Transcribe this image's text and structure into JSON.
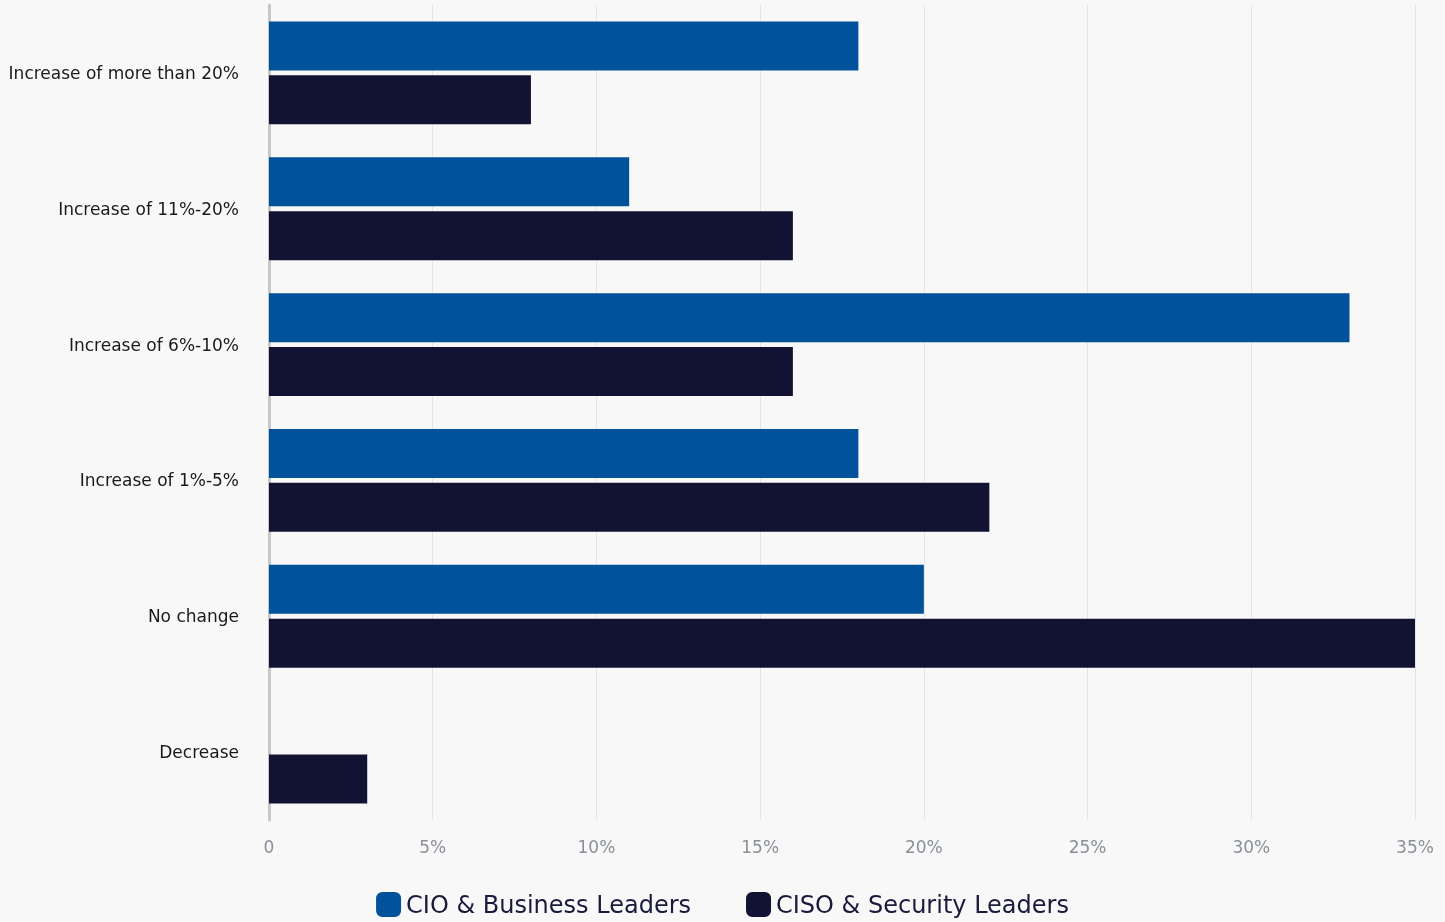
{
  "chart_data": {
    "type": "bar",
    "orientation": "horizontal",
    "categories": [
      "Increase of more than 20%",
      "Increase of 11%-20%",
      "Increase of 6%-10%",
      "Increase of 1%-5%",
      "No change",
      "Decrease"
    ],
    "series": [
      {
        "name": "CIO & Business Leaders",
        "color": "#00539b",
        "values": [
          18,
          11,
          33,
          18,
          20,
          0
        ]
      },
      {
        "name": "CISO & Security Leaders",
        "color": "#121232",
        "values": [
          8,
          16,
          16,
          22,
          35,
          3
        ]
      }
    ],
    "xlim": [
      0,
      35
    ],
    "xticks": [
      0,
      {
        "value": 5,
        "label": "5%"
      },
      {
        "value": 10,
        "label": "10%"
      },
      {
        "value": 15,
        "label": "15%"
      },
      {
        "value": 20,
        "label": "20%"
      },
      {
        "value": 25,
        "label": "25%"
      },
      {
        "value": 30,
        "label": "30%"
      },
      {
        "value": 35,
        "label": "35%"
      }
    ],
    "grid": "x",
    "legend": "bottom"
  }
}
